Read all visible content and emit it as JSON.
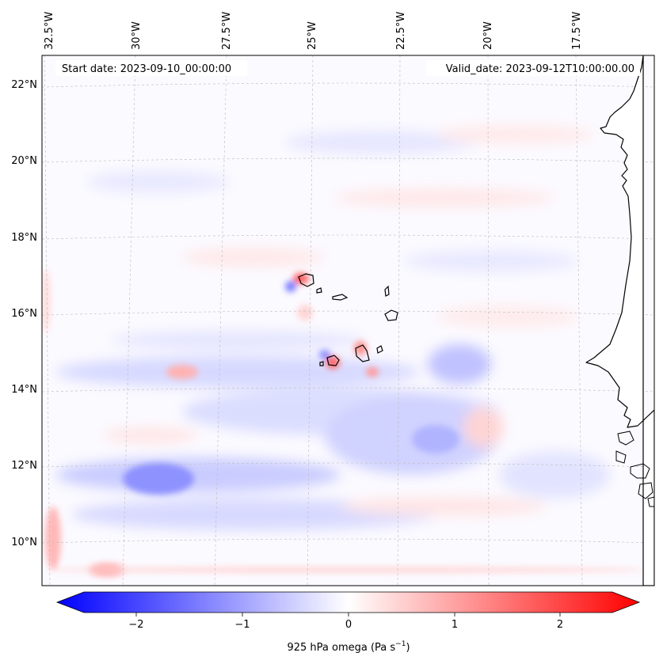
{
  "header": {
    "start_date": "Start date: 2023-09-10_00:00:00",
    "valid_date": "Valid_date: 2023-09-12T10:00:00.00"
  },
  "map": {
    "lon_labels": [
      "32.5°W",
      "30°W",
      "27.5°W",
      "25°W",
      "22.5°W",
      "20°W",
      "17.5°W"
    ],
    "lat_labels": [
      "22°N",
      "20°N",
      "18°N",
      "16°N",
      "14°N",
      "12°N",
      "10°N"
    ],
    "lon_range": [
      -33.0,
      -16.6
    ],
    "lat_range": [
      8.9,
      22.8
    ],
    "gridlines": true,
    "coastline_color": "#000000"
  },
  "colorbar": {
    "label_prefix": "925 hPa omega (Pa s",
    "label_exponent": "−1",
    "label_suffix": ")",
    "ticks": [
      "−2",
      "−1",
      "0",
      "1",
      "2"
    ],
    "tick_values": [
      -2,
      -1,
      0,
      1,
      2
    ],
    "range": [
      -2.5,
      2.5
    ],
    "colormap": "bwr",
    "color_min": "#0000ff",
    "color_mid": "#ffffff",
    "color_max": "#ff0000"
  }
}
